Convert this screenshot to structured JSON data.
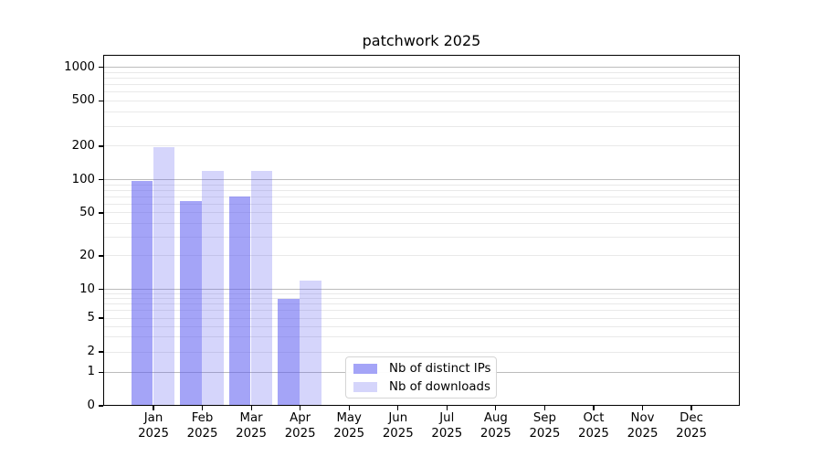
{
  "chart_data": {
    "type": "bar",
    "title": "patchwork 2025",
    "categories": [
      "Jan 2025",
      "Feb 2025",
      "Mar 2025",
      "Apr 2025",
      "May 2025",
      "Jun 2025",
      "Jul 2025",
      "Aug 2025",
      "Sep 2025",
      "Oct 2025",
      "Nov 2025",
      "Dec 2025"
    ],
    "month_labels": [
      "Jan",
      "Feb",
      "Mar",
      "Apr",
      "May",
      "Jun",
      "Jul",
      "Aug",
      "Sep",
      "Oct",
      "Nov",
      "Dec"
    ],
    "year_label": "2025",
    "series": [
      {
        "name": "Nb of distinct IPs",
        "values": [
          97,
          64,
          70,
          8,
          0,
          0,
          0,
          0,
          0,
          0,
          0,
          0
        ],
        "color": "#5c5cf0",
        "alpha": 0.56
      },
      {
        "name": "Nb of downloads",
        "values": [
          195,
          120,
          120,
          12,
          0,
          0,
          0,
          0,
          0,
          0,
          0,
          0
        ],
        "color": "#5c5cf0",
        "alpha": 0.26
      }
    ],
    "y_ticks": [
      0,
      1,
      2,
      5,
      10,
      20,
      50,
      100,
      200,
      500,
      1000
    ],
    "ylim": [
      0,
      1150
    ],
    "yscale": "symlog",
    "grid": "horizontal",
    "legend_position": "lower-left-of-center",
    "colors": {
      "bar_distinct_ips_rendered": "#a7a7f4",
      "bar_downloads_rendered": "#d8d8fa",
      "gridline_major": "#bcbcbc",
      "gridline_minor": "#e9e9e9",
      "axis": "#000000"
    }
  },
  "legend": {
    "items": [
      {
        "label": "Nb of distinct IPs"
      },
      {
        "label": "Nb of downloads"
      }
    ]
  }
}
